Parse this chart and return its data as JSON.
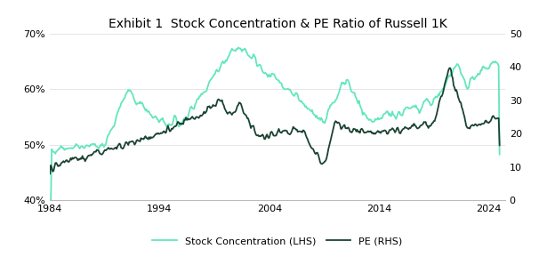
{
  "title": "Exhibit 1  Stock Concentration & PE Ratio of Russell 1K",
  "title_fontsize": 10,
  "lhs_color": "#63E6BE",
  "rhs_color": "#1B4332",
  "lhs_label": "Stock Concentration (LHS)",
  "rhs_label": "PE (RHS)",
  "lhs_ylim": [
    40,
    70
  ],
  "rhs_ylim": [
    0,
    50
  ],
  "lhs_yticks": [
    40,
    50,
    60,
    70
  ],
  "rhs_yticks": [
    0,
    10,
    20,
    30,
    40,
    50
  ],
  "xticks": [
    1984,
    1994,
    2004,
    2014,
    2024
  ],
  "xlim": [
    1984,
    2025.5
  ],
  "background_color": "#ffffff",
  "linewidth": 1.3,
  "legend_fontsize": 8,
  "tick_fontsize": 8,
  "figsize": [
    6.24,
    2.89
  ],
  "dpi": 100
}
